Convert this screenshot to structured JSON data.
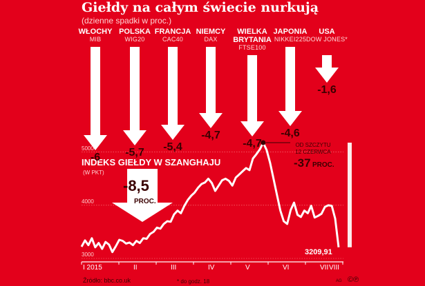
{
  "header": {
    "title": "Giełdy na całym świecie nurkują",
    "subtitle": "(dzienne spadki w proc.)"
  },
  "markets": [
    {
      "name": "WŁOCHY",
      "index": "MIB",
      "value": "-6",
      "depth": 150
    },
    {
      "name": "POLSKA",
      "index": "WIG20",
      "value": "-5,7",
      "depth": 143
    },
    {
      "name": "FRANCJA",
      "index": "CAC40",
      "value": "-5,4",
      "depth": 135
    },
    {
      "name": "NIEMCY",
      "index": "DAX",
      "value": "-4,7",
      "depth": 118
    },
    {
      "name": "WIELKA BRYTANIA",
      "index": "FTSE100",
      "value": "-4,7",
      "depth": 118
    },
    {
      "name": "JAPONIA",
      "index": "NIKKEI225",
      "value": "-4,6",
      "depth": 115
    },
    {
      "name": "USA",
      "index": "DOW JONES*",
      "value": "-1,6",
      "depth": 40
    }
  ],
  "colors": {
    "background": "#e3001b",
    "arrow": "#ffffff",
    "dark_text": "#3a0000",
    "line": "#ffffff"
  },
  "chart_data": {
    "type": "line",
    "title": "INDEKS GIEŁDY W SZANGHAJU",
    "ylabel": "(W PKT)",
    "ylim": [
      3000,
      5100
    ],
    "yticks": [
      "3000",
      "4000",
      "5000"
    ],
    "x_labels": [
      "I 2015",
      "II",
      "III",
      "IV",
      "V",
      "VI",
      "VII",
      "VIII"
    ],
    "series": [
      {
        "values": [
          3220,
          3340,
          3250,
          3380,
          3210,
          3290,
          3180,
          3310,
          3260,
          3120,
          3230,
          3350,
          3330,
          3280,
          3300,
          3250,
          3330,
          3290,
          3380,
          3370,
          3460,
          3500,
          3580,
          3560,
          3650,
          3700,
          3690,
          3830,
          3900,
          3850,
          3990,
          4100,
          4180,
          4240,
          4330,
          4400,
          4430,
          4500,
          4420,
          4270,
          4370,
          4470,
          4500,
          4460,
          4370,
          4520,
          4580,
          4640,
          4700,
          4660,
          4880,
          4960,
          5050,
          5178,
          5040,
          4800,
          4500,
          4200,
          3900,
          3700,
          3650,
          3910,
          4050,
          3820,
          3780,
          3900,
          3850,
          3990,
          3770,
          3800,
          3840,
          3970,
          4000,
          3990,
          3750,
          3210
        ]
      }
    ],
    "y_range_bar": {
      "from": 5178,
      "to": 3209.91
    },
    "annotations": {
      "peak_label": [
        "OD SZCZYTU",
        "12 CZERWCA"
      ],
      "peak_change": "-37",
      "peak_change_unit": "PROC.",
      "recent_drop": "-8,5",
      "recent_drop_unit": "PROC.",
      "last_value": "3209,91"
    }
  },
  "footer": {
    "source": "Źródło: bbc.co.uk",
    "note": "* do godz. 18",
    "credit": "AG",
    "copyright_icons": "©℗"
  }
}
